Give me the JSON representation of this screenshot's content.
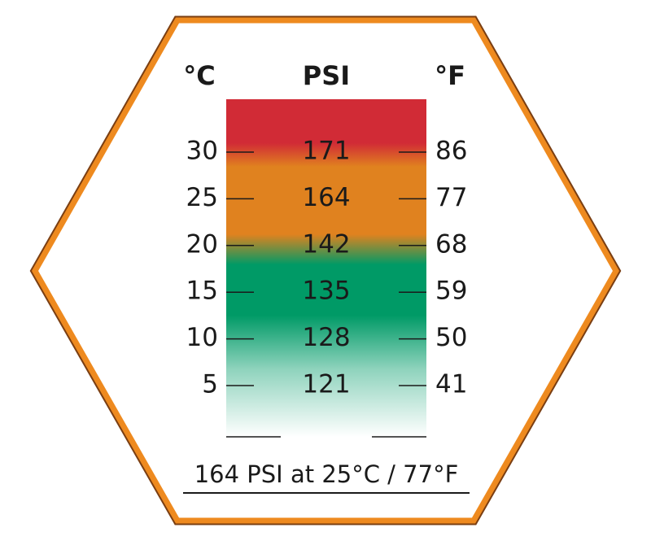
{
  "header": {
    "celsius": "°C",
    "psi": "PSI",
    "fahrenheit": "°F"
  },
  "rows": [
    {
      "celsius": "30",
      "psi": "171",
      "fahrenheit": "86"
    },
    {
      "celsius": "25",
      "psi": "164",
      "fahrenheit": "77"
    },
    {
      "celsius": "20",
      "psi": "142",
      "fahrenheit": "68"
    },
    {
      "celsius": "15",
      "psi": "135",
      "fahrenheit": "59"
    },
    {
      "celsius": "10",
      "psi": "128",
      "fahrenheit": "50"
    },
    {
      "celsius": "5",
      "psi": "121",
      "fahrenheit": "41"
    }
  ],
  "footer": "164 PSI at 25°C / 77°F"
}
